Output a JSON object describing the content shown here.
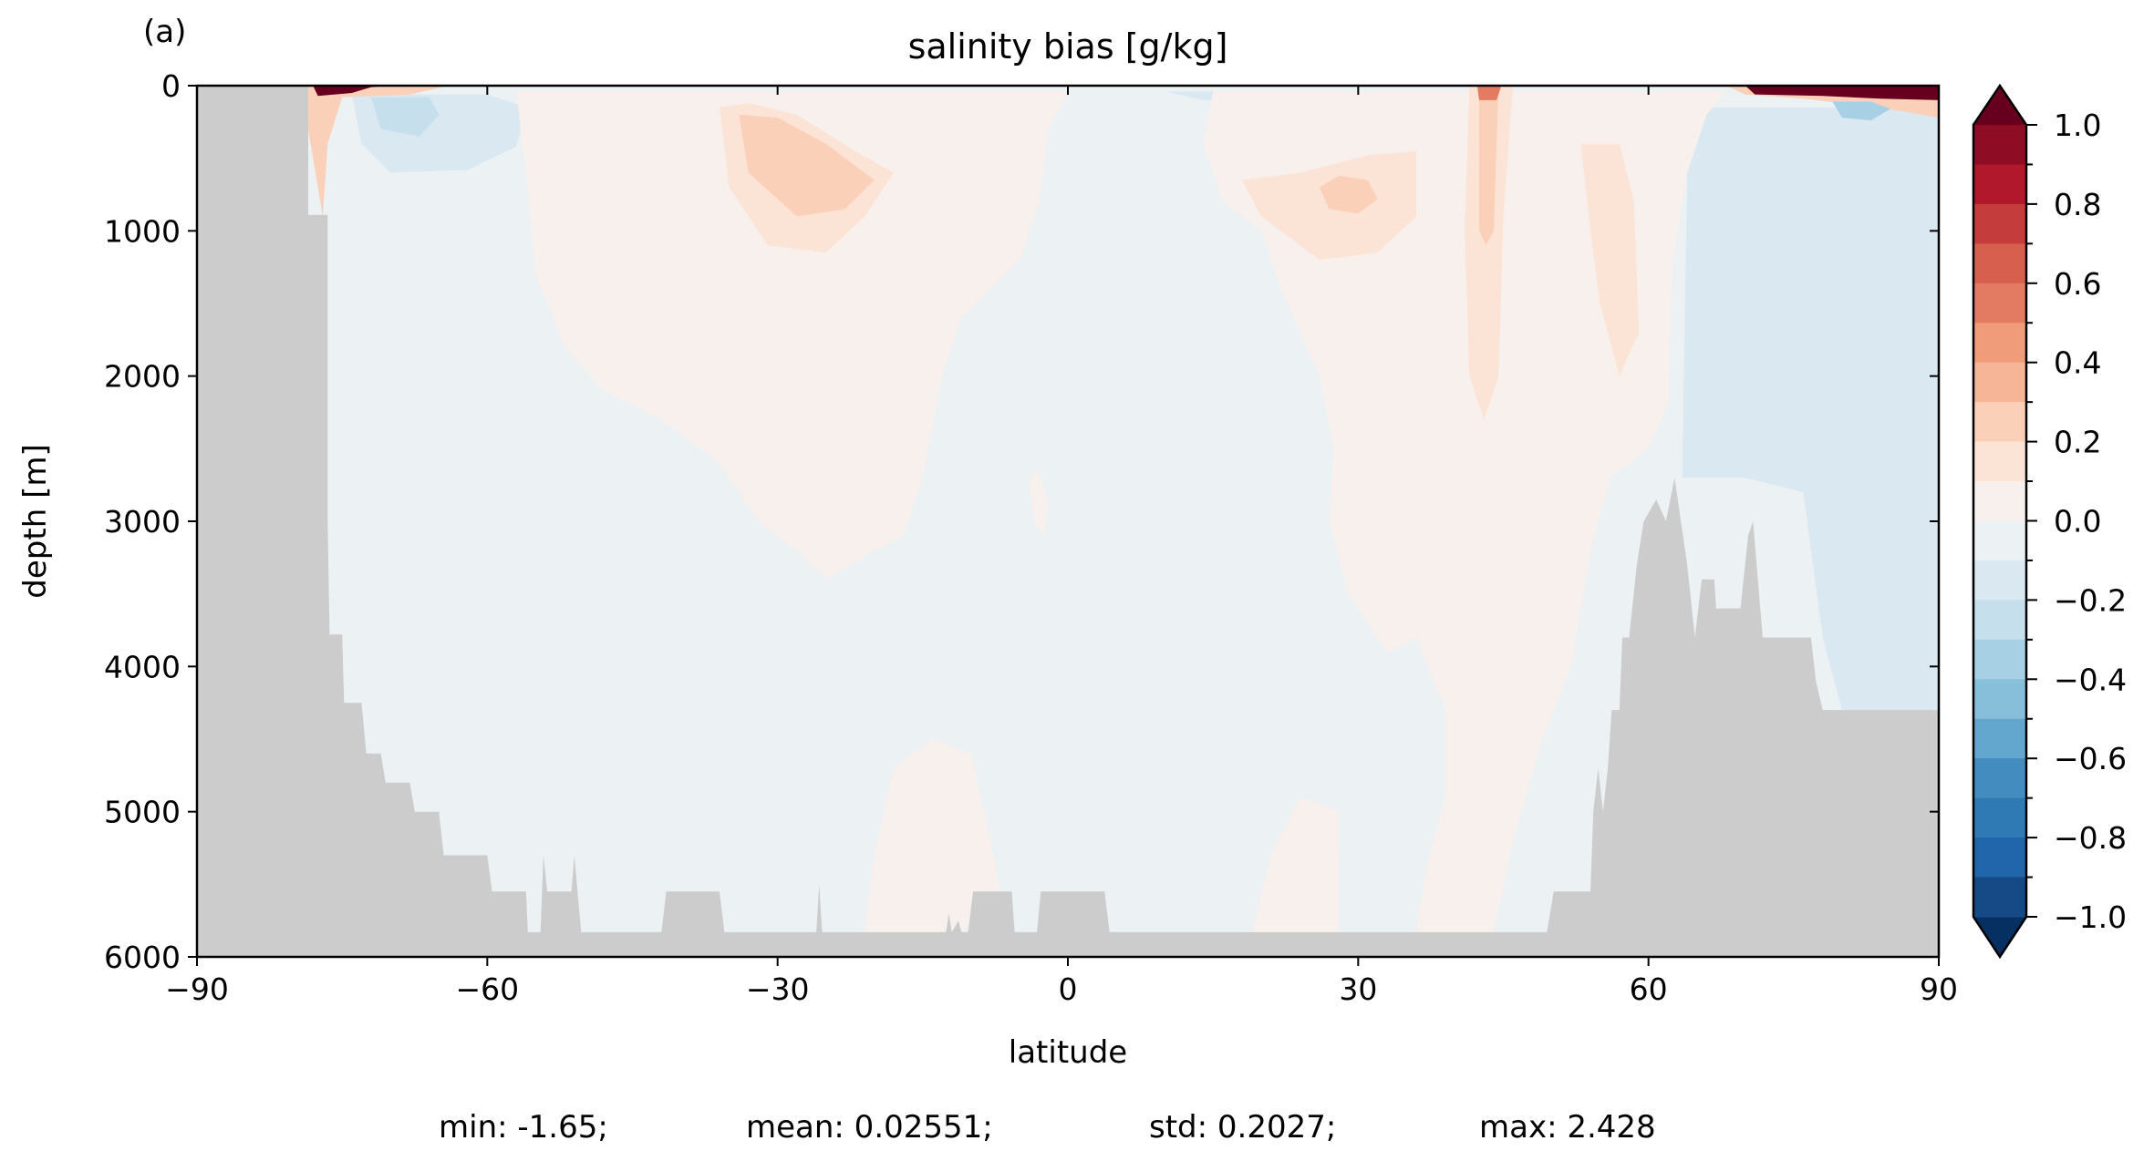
{
  "chart_data": {
    "type": "heatmap",
    "subtype": "filled-contour depth-latitude section",
    "panel_label": "(a)",
    "title": "salinity bias [g/kg]",
    "xlabel": "latitude",
    "ylabel": "depth [m]",
    "xlim": [
      -90,
      90
    ],
    "ylim": [
      6000,
      0
    ],
    "xticks": [
      -90,
      -60,
      -30,
      0,
      30,
      60,
      90
    ],
    "xtick_labels": [
      "−90",
      "−60",
      "−30",
      "0",
      "30",
      "60",
      "90"
    ],
    "yticks": [
      0,
      1000,
      2000,
      3000,
      4000,
      5000,
      6000
    ],
    "ytick_labels": [
      "0",
      "1000",
      "2000",
      "3000",
      "4000",
      "5000",
      "6000"
    ],
    "colorbar": {
      "range": [
        -1.0,
        1.0
      ],
      "levels_step": 0.1,
      "extend": "both",
      "ticks": [
        1.0,
        0.8,
        0.6,
        0.4,
        0.2,
        0.0,
        -0.2,
        -0.4,
        -0.6,
        -0.8,
        -1.0
      ],
      "tick_labels": [
        "1.0",
        "0.8",
        "0.6",
        "0.4",
        "0.2",
        "0.0",
        "−0.2",
        "−0.4",
        "−0.6",
        "−0.8",
        "−1.0"
      ],
      "colormap": "RdBu_r",
      "colors_high_to_low": [
        "#8e0d25",
        "#b2182b",
        "#c43c3c",
        "#d6604d",
        "#e27b62",
        "#f09c7b",
        "#f6b597",
        "#fbd0b9",
        "#fbe3d6",
        "#f8f0ec",
        "#ecf1f4",
        "#dae8f1",
        "#c6dfec",
        "#a8d0e4",
        "#87beda",
        "#63a6ce",
        "#428cc0",
        "#2f79b5",
        "#2165ab",
        "#154a86"
      ],
      "over_color": "#67001f",
      "under_color": "#053061"
    },
    "land_color": "#cccccc",
    "stats": {
      "min": "min: -1.65;",
      "mean": "mean: 0.02551;",
      "std": "std: 0.2027;",
      "max": "max: 2.428"
    }
  }
}
